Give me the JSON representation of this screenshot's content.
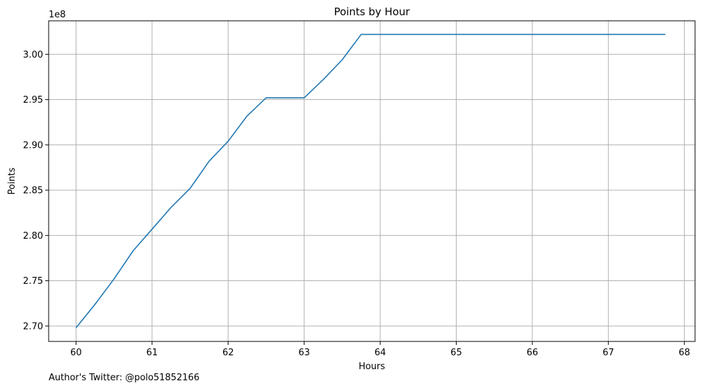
{
  "chart_data": {
    "type": "line",
    "title": "Points by Hour",
    "xlabel": "Hours",
    "ylabel": "Points",
    "y_offset_label": "1e8",
    "xlim": [
      59.64,
      68.14
    ],
    "ylim": [
      2.683,
      3.037
    ],
    "grid": true,
    "x_ticks": [
      60,
      61,
      62,
      63,
      64,
      65,
      66,
      67,
      68
    ],
    "x_tick_labels": [
      "60",
      "61",
      "62",
      "63",
      "64",
      "65",
      "66",
      "67",
      "68"
    ],
    "y_ticks": [
      2.7,
      2.75,
      2.8,
      2.85,
      2.9,
      2.95,
      3.0
    ],
    "y_tick_labels": [
      "2.70",
      "2.75",
      "2.80",
      "2.85",
      "2.90",
      "2.95",
      "3.00"
    ],
    "series": [
      {
        "color": "#1f77b4",
        "x": [
          60.0,
          60.25,
          60.5,
          60.75,
          61.0,
          61.25,
          61.5,
          61.75,
          62.0,
          62.25,
          62.5,
          62.75,
          63.0,
          63.25,
          63.5,
          63.75,
          64.0,
          64.25,
          64.5,
          64.75,
          65.0,
          65.25,
          65.5,
          65.75,
          66.0,
          66.25,
          66.5,
          66.75,
          67.0,
          67.25,
          67.5,
          67.75
        ],
        "y": [
          2.698,
          2.724,
          2.752,
          2.783,
          2.807,
          2.831,
          2.852,
          2.882,
          2.904,
          2.932,
          2.952,
          2.952,
          2.952,
          2.972,
          2.994,
          3.022,
          3.022,
          3.022,
          3.022,
          3.022,
          3.022,
          3.022,
          3.022,
          3.022,
          3.022,
          3.022,
          3.022,
          3.022,
          3.022,
          3.022,
          3.022,
          3.022
        ]
      }
    ]
  },
  "footer": {
    "text": "Author's Twitter: @polo51852166"
  }
}
